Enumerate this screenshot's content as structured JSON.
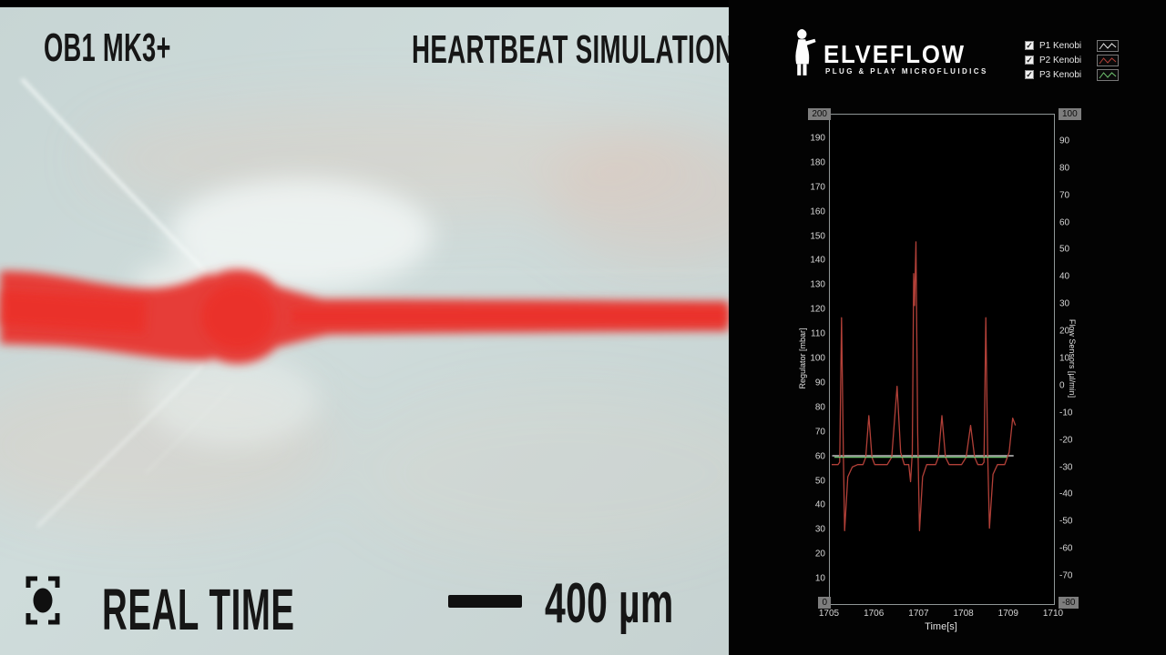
{
  "video": {
    "device_label": "OB1 MK3+",
    "title": "HEARTBEAT SIMULATION",
    "realtime_label": "REAL TIME",
    "scale_label": "400 µm"
  },
  "panel": {
    "brand": {
      "name": "ELVEFLOW",
      "tagline": "PLUG & PLAY MICROFLUIDICS"
    },
    "legend": [
      {
        "label": "P1 Kenobi",
        "checked": true,
        "color": "#e8e8e8"
      },
      {
        "label": "P2 Kenobi",
        "checked": true,
        "color": "#b24038"
      },
      {
        "label": "P3 Kenobi",
        "checked": true,
        "color": "#6fc46f"
      }
    ]
  },
  "chart_data": {
    "type": "line",
    "title": "",
    "xlabel": "Time[s]",
    "x_range": [
      1705,
      1710
    ],
    "x_ticks": [
      1705,
      1706,
      1707,
      1708,
      1709,
      1710
    ],
    "grid": false,
    "background": "#000000",
    "y_axes": {
      "left": {
        "label": "Regulator [mbar]",
        "min": 0,
        "max": 200,
        "tick_step": 10
      },
      "right": {
        "label": "Flow Sensors [µl/min]",
        "min": -80,
        "max": 100,
        "tick_step": 10
      }
    },
    "series": [
      {
        "name": "P1 Kenobi",
        "axis": "left",
        "color": "#e8e8e8",
        "points": [
          [
            1705.05,
            60.6
          ],
          [
            1709.1,
            60.6
          ]
        ]
      },
      {
        "name": "P2 Kenobi",
        "axis": "left",
        "color": "#b24038",
        "points": [
          [
            1705.04,
            57
          ],
          [
            1705.18,
            57
          ],
          [
            1705.22,
            58
          ],
          [
            1705.26,
            117
          ],
          [
            1705.3,
            62
          ],
          [
            1705.33,
            30
          ],
          [
            1705.4,
            52
          ],
          [
            1705.5,
            56
          ],
          [
            1705.62,
            57
          ],
          [
            1705.74,
            57
          ],
          [
            1705.8,
            60
          ],
          [
            1705.87,
            77
          ],
          [
            1705.94,
            60
          ],
          [
            1706.0,
            57
          ],
          [
            1706.28,
            57
          ],
          [
            1706.38,
            60
          ],
          [
            1706.5,
            89
          ],
          [
            1706.58,
            62
          ],
          [
            1706.66,
            57
          ],
          [
            1706.76,
            57
          ],
          [
            1706.8,
            50
          ],
          [
            1706.84,
            62
          ],
          [
            1706.87,
            135
          ],
          [
            1706.89,
            122
          ],
          [
            1706.92,
            148
          ],
          [
            1706.96,
            70
          ],
          [
            1707.0,
            30
          ],
          [
            1707.07,
            52
          ],
          [
            1707.16,
            57
          ],
          [
            1707.36,
            57
          ],
          [
            1707.42,
            60
          ],
          [
            1707.5,
            77
          ],
          [
            1707.58,
            60
          ],
          [
            1707.66,
            57
          ],
          [
            1707.94,
            57
          ],
          [
            1708.04,
            60
          ],
          [
            1708.14,
            73
          ],
          [
            1708.23,
            60
          ],
          [
            1708.3,
            57
          ],
          [
            1708.4,
            57
          ],
          [
            1708.44,
            58
          ],
          [
            1708.48,
            117
          ],
          [
            1708.52,
            62
          ],
          [
            1708.56,
            31
          ],
          [
            1708.64,
            53
          ],
          [
            1708.74,
            57
          ],
          [
            1708.9,
            57
          ],
          [
            1709.0,
            62
          ],
          [
            1709.08,
            76
          ],
          [
            1709.14,
            73
          ]
        ]
      },
      {
        "name": "P3 Kenobi",
        "axis": "left",
        "color": "#6fc46f",
        "points": [
          [
            1705.1,
            60
          ],
          [
            1708.95,
            60
          ]
        ]
      }
    ]
  }
}
